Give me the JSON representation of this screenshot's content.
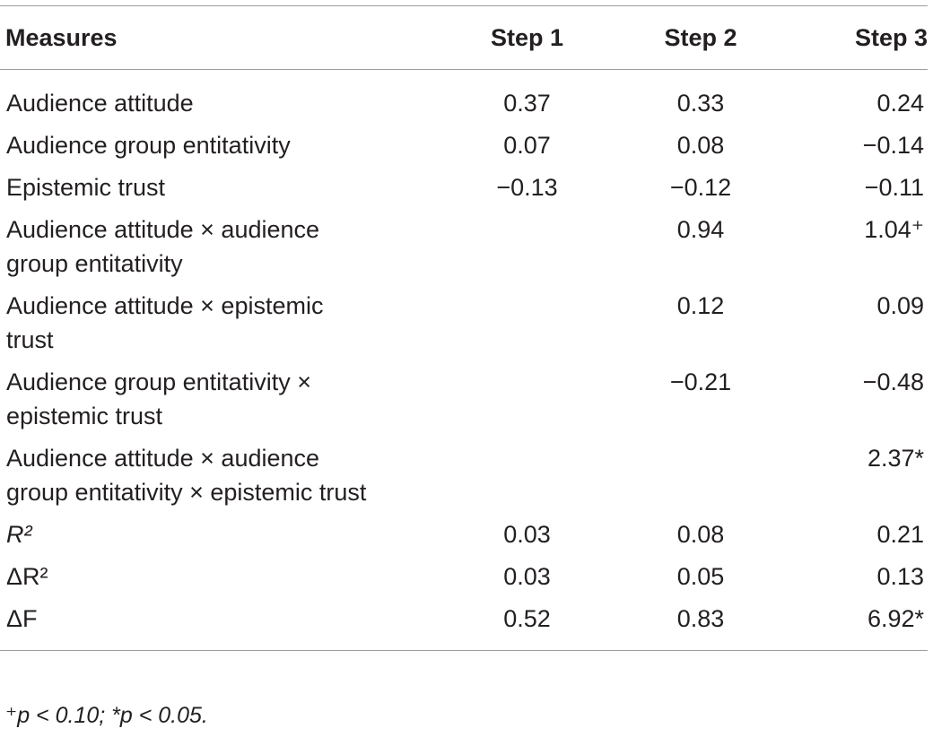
{
  "table": {
    "headers": [
      "Measures",
      "Step 1",
      "Step 2",
      "Step 3"
    ],
    "rows": [
      {
        "measure": "Audience attitude",
        "step1": "0.37",
        "step2": "0.33",
        "step3": "0.24"
      },
      {
        "measure": "Audience group entitativity",
        "step1": "0.07",
        "step2": "0.08",
        "step3": "−0.14"
      },
      {
        "measure": "Epistemic trust",
        "step1": "−0.13",
        "step2": "−0.12",
        "step3": "−0.11"
      },
      {
        "measure": "Audience attitude × audience group entitativity",
        "step1": "",
        "step2": "0.94",
        "step3": "1.04⁺"
      },
      {
        "measure": "Audience attitude × epistemic trust",
        "step1": "",
        "step2": "0.12",
        "step3": "0.09"
      },
      {
        "measure": "Audience group entitativity × epistemic trust",
        "step1": "",
        "step2": "−0.21",
        "step3": "−0.48"
      },
      {
        "measure": "Audience attitude × audience group entitativity × epistemic trust",
        "step1": "",
        "step2": "",
        "step3": "2.37*"
      },
      {
        "measure": "R²",
        "step1": "0.03",
        "step2": "0.08",
        "step3": "0.21"
      },
      {
        "measure": "ΔR²",
        "step1": "0.03",
        "step2": "0.05",
        "step3": "0.13"
      },
      {
        "measure": "ΔF",
        "step1": "0.52",
        "step2": "0.83",
        "step3": "6.92*"
      }
    ]
  },
  "footnote": "⁺p < 0.10; *p < 0.05."
}
